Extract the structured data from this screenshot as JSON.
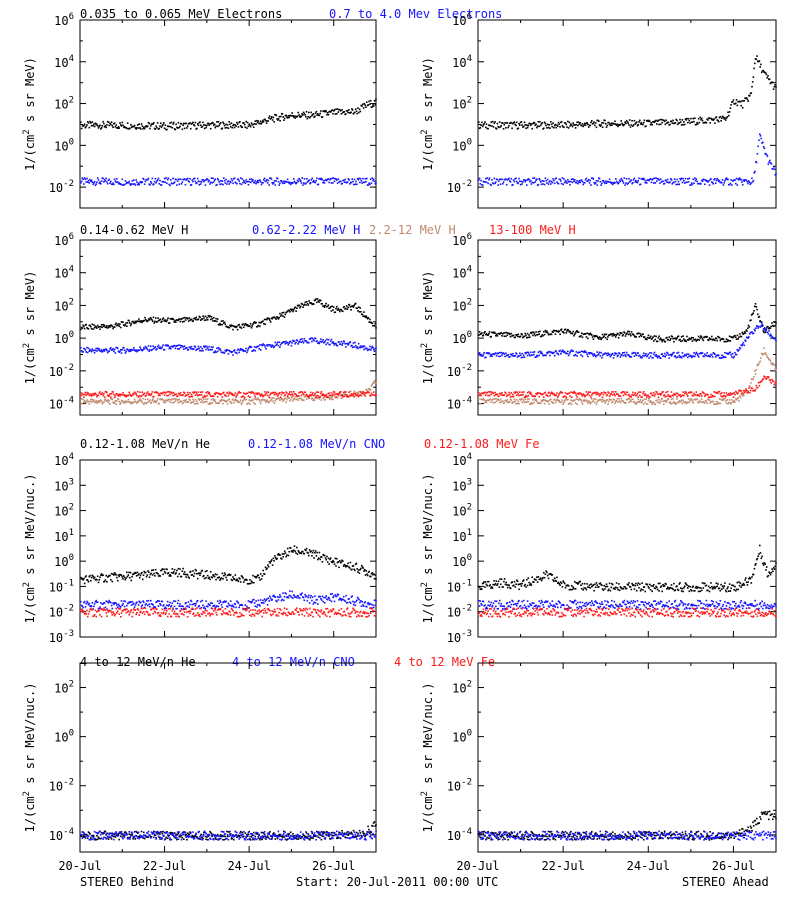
{
  "colors": {
    "black": "#000000",
    "blue": "#1414ff",
    "tan": "#c08a6e",
    "red": "#ff1a1a"
  },
  "footer": {
    "left": "STEREO Behind",
    "center": "Start: 20-Jul-2011 00:00 UTC",
    "right": "STEREO Ahead"
  },
  "xaxis": {
    "ticks": [
      "20-Jul",
      "22-Jul",
      "24-Jul",
      "26-Jul"
    ]
  },
  "rows": [
    {
      "title": [
        {
          "text": "0.035 to 0.065 MeV Electrons",
          "color": "black"
        },
        {
          "text": "0.7 to 4.0 Mev Electrons",
          "color": "blue"
        }
      ],
      "ylabel": "1/(cm2 s sr MeV)"
    },
    {
      "title": [
        {
          "text": "0.14-0.62 MeV H",
          "color": "black"
        },
        {
          "text": "0.62-2.22 MeV H",
          "color": "blue"
        },
        {
          "text": "2.2-12 MeV H",
          "color": "tan"
        },
        {
          "text": "13-100 MeV H",
          "color": "red"
        }
      ],
      "ylabel": "1/(cm2 s sr MeV)"
    },
    {
      "title": [
        {
          "text": "0.12-1.08 MeV/n He",
          "color": "black"
        },
        {
          "text": "0.12-1.08 MeV/n CNO",
          "color": "blue"
        },
        {
          "text": "0.12-1.08 MeV Fe",
          "color": "red"
        }
      ],
      "ylabel": "1/(cm2 s sr MeV/nuc.)"
    },
    {
      "title": [
        {
          "text": "4 to 12 MeV/n He",
          "color": "black"
        },
        {
          "text": "4 to 12 MeV/n CNO",
          "color": "blue"
        },
        {
          "text": "4 to 12 MeV Fe",
          "color": "red"
        }
      ],
      "ylabel": "1/(cm2 s sr MeV/nuc.)"
    }
  ],
  "chart_data": [
    {
      "type": "scatter",
      "row": 0,
      "spacecraft": "STEREO Behind",
      "yscale": "log",
      "ylim": [
        0.001,
        1000000
      ],
      "xlim": [
        "20-Jul",
        "27-Jul"
      ],
      "ytick_exponents": [
        -2,
        0,
        2,
        4,
        6
      ],
      "series": [
        {
          "name": "0.035 to 0.065 MeV Electrons",
          "color": "black",
          "x": [
            0,
            1,
            2,
            3,
            4,
            4.5,
            5,
            5.5,
            6,
            6.5,
            6.8,
            7
          ],
          "y": [
            10,
            10,
            9,
            10,
            10,
            20,
            30,
            30,
            40,
            45,
            100,
            120
          ]
        },
        {
          "name": "0.7 to 4.0 Mev Electrons",
          "color": "blue",
          "x": [
            0,
            1,
            2,
            3,
            4,
            5,
            6,
            7
          ],
          "y": [
            0.02,
            0.02,
            0.02,
            0.02,
            0.02,
            0.02,
            0.02,
            0.02
          ]
        }
      ]
    },
    {
      "type": "scatter",
      "row": 0,
      "spacecraft": "STEREO Ahead",
      "yscale": "log",
      "ylim": [
        0.001,
        1000000
      ],
      "xlim": [
        "20-Jul",
        "27-Jul"
      ],
      "ytick_exponents": [
        -2,
        0,
        2,
        4,
        6
      ],
      "series": [
        {
          "name": "0.035 to 0.065 MeV Electrons",
          "color": "black",
          "x": [
            0,
            1,
            2,
            3,
            4,
            5,
            5.8,
            6.0,
            6.2,
            6.4,
            6.5,
            6.7,
            7
          ],
          "y": [
            10,
            10,
            10,
            12,
            12,
            15,
            20,
            150,
            100,
            300,
            20000,
            3000,
            500
          ]
        },
        {
          "name": "0.7 to 4.0 Mev Electrons",
          "color": "blue",
          "x": [
            0,
            1,
            2,
            3,
            4,
            5,
            6,
            6.45,
            6.6,
            6.8,
            7
          ],
          "y": [
            0.02,
            0.02,
            0.02,
            0.02,
            0.02,
            0.02,
            0.02,
            0.02,
            3,
            0.2,
            0.04
          ]
        }
      ]
    },
    {
      "type": "scatter",
      "row": 1,
      "spacecraft": "STEREO Behind",
      "yscale": "log",
      "ylim": [
        2e-05,
        1000000
      ],
      "xlim": [
        "20-Jul",
        "27-Jul"
      ],
      "ytick_exponents": [
        -4,
        -2,
        0,
        2,
        4,
        6
      ],
      "series": [
        {
          "name": "0.14-0.62 MeV H",
          "color": "black",
          "x": [
            0,
            0.8,
            1.5,
            2.3,
            3.0,
            3.6,
            4.2,
            4.8,
            5.2,
            5.6,
            6.0,
            6.5,
            7
          ],
          "y": [
            5,
            6,
            15,
            12,
            20,
            5,
            8,
            30,
            100,
            200,
            60,
            100,
            5
          ]
        },
        {
          "name": "0.62-2.22 MeV H",
          "color": "blue",
          "x": [
            0,
            1,
            2,
            3,
            3.6,
            4.2,
            4.8,
            5.5,
            6.0,
            6.5,
            7
          ],
          "y": [
            0.2,
            0.2,
            0.3,
            0.25,
            0.15,
            0.3,
            0.5,
            0.8,
            0.6,
            0.4,
            0.2
          ]
        },
        {
          "name": "2.2-12 MeV H",
          "color": "tan",
          "x": [
            0,
            1,
            2,
            3,
            4,
            5,
            6,
            6.8,
            7
          ],
          "y": [
            0.00015,
            0.00015,
            0.00015,
            0.00015,
            0.00015,
            0.0002,
            0.0003,
            0.0006,
            0.003
          ]
        },
        {
          "name": "13-100 MeV H",
          "color": "red",
          "x": [
            0,
            1,
            2,
            3,
            4,
            5,
            6,
            7
          ],
          "y": [
            0.0004,
            0.0004,
            0.0004,
            0.0004,
            0.0004,
            0.0004,
            0.0004,
            0.0004
          ]
        }
      ]
    },
    {
      "type": "scatter",
      "row": 1,
      "spacecraft": "STEREO Ahead",
      "yscale": "log",
      "ylim": [
        2e-05,
        1000000
      ],
      "xlim": [
        "20-Jul",
        "27-Jul"
      ],
      "ytick_exponents": [
        -4,
        -2,
        0,
        2,
        4,
        6
      ],
      "series": [
        {
          "name": "0.14-0.62 MeV H",
          "color": "black",
          "x": [
            0,
            1,
            2,
            2.8,
            3.5,
            4.2,
            5,
            6,
            6.3,
            6.5,
            6.7,
            7
          ],
          "y": [
            2,
            1.5,
            3,
            1.2,
            2,
            1,
            1,
            1,
            3,
            100,
            3,
            10
          ]
        },
        {
          "name": "0.62-2.22 MeV H",
          "color": "blue",
          "x": [
            0,
            1,
            2,
            3,
            4,
            5,
            6,
            6.4,
            6.6,
            7
          ],
          "y": [
            0.1,
            0.1,
            0.15,
            0.1,
            0.1,
            0.1,
            0.1,
            2,
            8,
            0.8
          ]
        },
        {
          "name": "2.2-12 MeV H",
          "color": "tan",
          "x": [
            0,
            1,
            2,
            3,
            4,
            5,
            6,
            6.3,
            6.5,
            6.7,
            7
          ],
          "y": [
            0.00015,
            0.00015,
            0.00015,
            0.00015,
            0.00015,
            0.00015,
            0.00015,
            0.0005,
            0.01,
            0.2,
            0.01
          ]
        },
        {
          "name": "13-100 MeV H",
          "color": "red",
          "x": [
            0,
            1,
            2,
            3,
            4,
            5,
            6,
            6.2,
            6.5,
            6.7,
            7
          ],
          "y": [
            0.0004,
            0.0004,
            0.0004,
            0.0004,
            0.0004,
            0.0004,
            0.0004,
            0.0006,
            0.0008,
            0.005,
            0.0015
          ]
        }
      ]
    },
    {
      "type": "scatter",
      "row": 2,
      "spacecraft": "STEREO Behind",
      "yscale": "log",
      "ylim": [
        0.001,
        10000
      ],
      "xlim": [
        "20-Jul",
        "27-Jul"
      ],
      "ytick_exponents": [
        -3,
        -2,
        -1,
        0,
        1,
        2,
        3,
        4
      ],
      "series": [
        {
          "name": "0.12-1.08 MeV/n He",
          "color": "black",
          "x": [
            0,
            0.8,
            1.5,
            2.2,
            3.0,
            3.8,
            4.2,
            4.5,
            5.0,
            5.5,
            6.0,
            6.5,
            7
          ],
          "y": [
            0.2,
            0.25,
            0.3,
            0.4,
            0.3,
            0.2,
            0.2,
            1,
            3,
            2,
            1,
            0.6,
            0.3
          ]
        },
        {
          "name": "0.12-1.08 MeV/n CNO",
          "color": "blue",
          "x": [
            0,
            1,
            2,
            3,
            4,
            5,
            5.5,
            6,
            7
          ],
          "y": [
            0.02,
            0.02,
            0.02,
            0.02,
            0.02,
            0.05,
            0.03,
            0.04,
            0.02
          ]
        },
        {
          "name": "0.12-1.08 MeV Fe",
          "color": "red",
          "x": [
            0,
            1,
            2,
            3,
            4,
            5,
            6,
            7
          ],
          "y": [
            0.01,
            0.01,
            0.01,
            0.01,
            0.01,
            0.01,
            0.01,
            0.01
          ]
        }
      ]
    },
    {
      "type": "scatter",
      "row": 2,
      "spacecraft": "STEREO Ahead",
      "yscale": "log",
      "ylim": [
        0.001,
        10000
      ],
      "xlim": [
        "20-Jul",
        "27-Jul"
      ],
      "ytick_exponents": [
        -3,
        -2,
        -1,
        0,
        1,
        2,
        3,
        4
      ],
      "series": [
        {
          "name": "0.12-1.08 MeV/n He",
          "color": "black",
          "x": [
            0,
            0.5,
            1,
            1.6,
            2,
            3,
            4,
            5,
            6,
            6.4,
            6.6,
            6.8,
            7
          ],
          "y": [
            0.1,
            0.15,
            0.12,
            0.3,
            0.12,
            0.1,
            0.1,
            0.1,
            0.1,
            0.2,
            3,
            0.3,
            1
          ]
        },
        {
          "name": "0.12-1.08 MeV/n CNO",
          "color": "blue",
          "x": [
            0,
            1,
            2,
            3,
            4,
            5,
            6,
            7
          ],
          "y": [
            0.02,
            0.02,
            0.02,
            0.02,
            0.02,
            0.02,
            0.02,
            0.02
          ]
        },
        {
          "name": "0.12-1.08 MeV Fe",
          "color": "red",
          "x": [
            0,
            1,
            2,
            3,
            4,
            5,
            6,
            7
          ],
          "y": [
            0.01,
            0.01,
            0.01,
            0.01,
            0.01,
            0.01,
            0.01,
            0.01
          ]
        }
      ]
    },
    {
      "type": "scatter",
      "row": 3,
      "spacecraft": "STEREO Behind",
      "yscale": "log",
      "ylim": [
        2e-05,
        1000
      ],
      "xlim": [
        "20-Jul",
        "27-Jul"
      ],
      "ytick_exponents": [
        -4,
        -2,
        0,
        2
      ],
      "series": [
        {
          "name": "4 to 12 MeV/n He",
          "color": "black",
          "x": [
            0,
            1,
            2,
            3,
            4,
            5,
            6,
            6.7,
            7
          ],
          "y": [
            0.0001,
            0.0001,
            0.0001,
            0.0001,
            0.0001,
            0.0001,
            0.0001,
            0.00012,
            0.0003
          ]
        },
        {
          "name": "4 to 12 MeV/n CNO",
          "color": "blue",
          "x": [
            0,
            1,
            2,
            3,
            4,
            5,
            6,
            7
          ],
          "y": [
            0.0001,
            0.0001,
            0.0001,
            0.0001,
            0.0001,
            0.0001,
            0.0001,
            0.0001
          ]
        },
        {
          "name": "4 to 12 MeV Fe",
          "color": "red",
          "x": [],
          "y": []
        }
      ]
    },
    {
      "type": "scatter",
      "row": 3,
      "spacecraft": "STEREO Ahead",
      "yscale": "log",
      "ylim": [
        2e-05,
        1000
      ],
      "xlim": [
        "20-Jul",
        "27-Jul"
      ],
      "ytick_exponents": [
        -4,
        -2,
        0,
        2
      ],
      "series": [
        {
          "name": "4 to 12 MeV/n He",
          "color": "black",
          "x": [
            0,
            1,
            2,
            3,
            4,
            5,
            6,
            6.4,
            6.7,
            7
          ],
          "y": [
            0.0001,
            0.0001,
            0.0001,
            0.0001,
            0.0001,
            0.0001,
            0.0001,
            0.0002,
            0.0008,
            0.0005
          ]
        },
        {
          "name": "4 to 12 MeV/n CNO",
          "color": "blue",
          "x": [
            0,
            1,
            2,
            3,
            4,
            5,
            6,
            7
          ],
          "y": [
            0.0001,
            0.0001,
            0.0001,
            0.0001,
            0.0001,
            0.0001,
            0.0001,
            0.0001
          ]
        },
        {
          "name": "4 to 12 MeV Fe",
          "color": "red",
          "x": [],
          "y": []
        }
      ]
    }
  ]
}
